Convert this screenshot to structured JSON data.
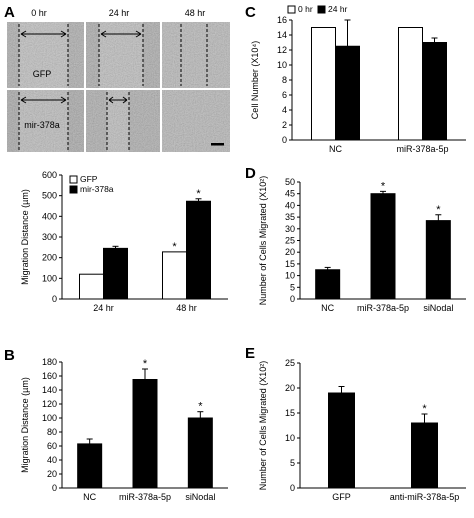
{
  "panel_letters": [
    "A",
    "B",
    "C",
    "D",
    "E"
  ],
  "micrographs": {
    "time_labels": [
      "0 hr",
      "24 hr",
      "48 hr"
    ],
    "row_labels": [
      "GFP",
      "mir-378a"
    ]
  },
  "chart_data": [
    {
      "id": "A",
      "type": "bar",
      "categories": [
        "24 hr",
        "48 hr"
      ],
      "series": [
        {
          "name": "GFP",
          "values": [
            120,
            228
          ],
          "errors": [
            0,
            0
          ],
          "color": "#ffffff"
        },
        {
          "name": "mir-378a",
          "values": [
            245,
            473
          ],
          "errors": [
            10,
            12
          ],
          "color": "#000000"
        }
      ],
      "significance": [
        [
          false,
          true
        ],
        [
          false,
          true
        ]
      ],
      "xlabel": "",
      "ylabel": "Migration Distance (µm)",
      "ylim": [
        0,
        600
      ],
      "yticks": [
        0,
        100,
        200,
        300,
        400,
        500,
        600
      ],
      "legend": "top-left",
      "grid": false
    },
    {
      "id": "B",
      "type": "bar",
      "categories": [
        "NC",
        "miR-378a-5p",
        "siNodal"
      ],
      "series": [
        {
          "name": "",
          "values": [
            63,
            155,
            100
          ],
          "errors": [
            7,
            15,
            9
          ],
          "color": "#000000"
        }
      ],
      "significance": [
        [
          false,
          true,
          true
        ]
      ],
      "xlabel": "",
      "ylabel": "Migration Distance (µm)",
      "ylim": [
        0,
        180
      ],
      "yticks": [
        0,
        20,
        40,
        60,
        80,
        100,
        120,
        140,
        160,
        180
      ],
      "grid": false
    },
    {
      "id": "C",
      "type": "bar",
      "categories": [
        "NC",
        "miR-378a-5p"
      ],
      "series": [
        {
          "name": "0 hr",
          "values": [
            15,
            15
          ],
          "errors": [
            0,
            0
          ],
          "color": "#ffffff"
        },
        {
          "name": "24 hr",
          "values": [
            12.5,
            13
          ],
          "errors": [
            3.5,
            0.6
          ],
          "color": "#000000"
        }
      ],
      "significance": [
        [
          false,
          false
        ],
        [
          false,
          false
        ]
      ],
      "xlabel": "",
      "ylabel": "Cell Number (X10⁴)",
      "ylim": [
        0,
        16
      ],
      "yticks": [
        0,
        2,
        4,
        6,
        8,
        10,
        12,
        14,
        16
      ],
      "legend": "top-left",
      "grid": false
    },
    {
      "id": "D",
      "type": "bar",
      "categories": [
        "NC",
        "miR-378a-5p",
        "siNodal"
      ],
      "series": [
        {
          "name": "",
          "values": [
            12.5,
            45,
            33.5
          ],
          "errors": [
            1,
            1,
            2.5
          ],
          "color": "#000000"
        }
      ],
      "significance": [
        [
          false,
          true,
          true
        ]
      ],
      "xlabel": "",
      "ylabel": "Number of Cells Migrated (X10²)",
      "ylim": [
        0,
        50
      ],
      "yticks": [
        0,
        5,
        10,
        15,
        20,
        25,
        30,
        35,
        40,
        45,
        50
      ],
      "grid": false
    },
    {
      "id": "E",
      "type": "bar",
      "categories": [
        "GFP",
        "anti-miR-378a-5p"
      ],
      "series": [
        {
          "name": "",
          "values": [
            19,
            13
          ],
          "errors": [
            1.3,
            1.8
          ],
          "color": "#000000"
        }
      ],
      "significance": [
        [
          false,
          true
        ]
      ],
      "xlabel": "",
      "ylabel": "Number of Cells Migrated (X10²)",
      "ylim": [
        0,
        25
      ],
      "yticks": [
        0,
        5,
        10,
        15,
        20,
        25
      ],
      "grid": false
    }
  ]
}
